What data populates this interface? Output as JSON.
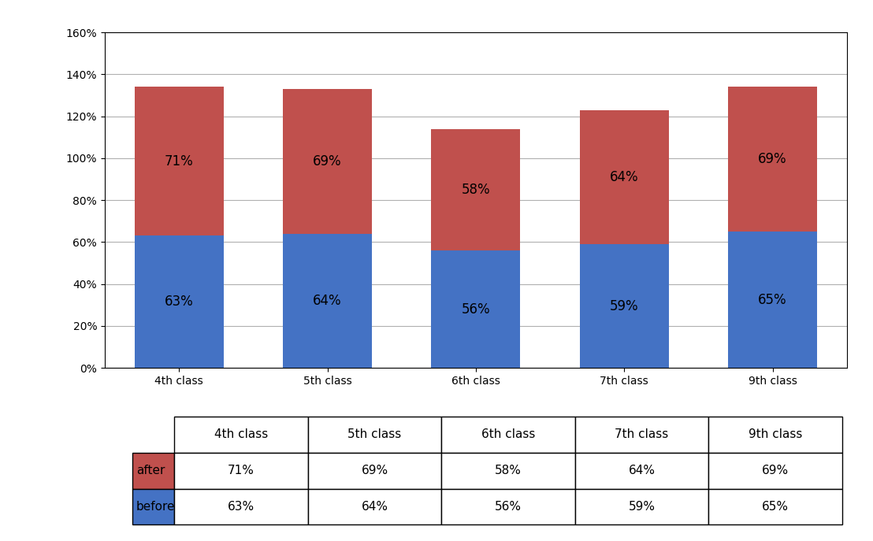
{
  "chart_data": {
    "type": "bar",
    "stacked": true,
    "data_labels": true,
    "grid": true,
    "categories": [
      "4th class",
      "5th class",
      "6th class",
      "7th class",
      "9th class"
    ],
    "series": [
      {
        "name": "before",
        "color": "#4472C4",
        "values": [
          63,
          64,
          56,
          59,
          65
        ],
        "value_labels": [
          "63%",
          "64%",
          "56%",
          "59%",
          "65%"
        ]
      },
      {
        "name": "after",
        "color": "#C0504D",
        "values": [
          71,
          69,
          58,
          64,
          69
        ],
        "value_labels": [
          "71%",
          "69%",
          "58%",
          "64%",
          "69%"
        ]
      }
    ],
    "ylim": [
      0,
      160
    ],
    "yticks": [
      {
        "value": 0,
        "label": "0%"
      },
      {
        "value": 20,
        "label": "20%"
      },
      {
        "value": 40,
        "label": "40%"
      },
      {
        "value": 60,
        "label": "60%"
      },
      {
        "value": 80,
        "label": "80%"
      },
      {
        "value": 100,
        "label": "100%"
      },
      {
        "value": 120,
        "label": "120%"
      },
      {
        "value": 140,
        "label": "140%"
      },
      {
        "value": 160,
        "label": "160%"
      }
    ]
  }
}
